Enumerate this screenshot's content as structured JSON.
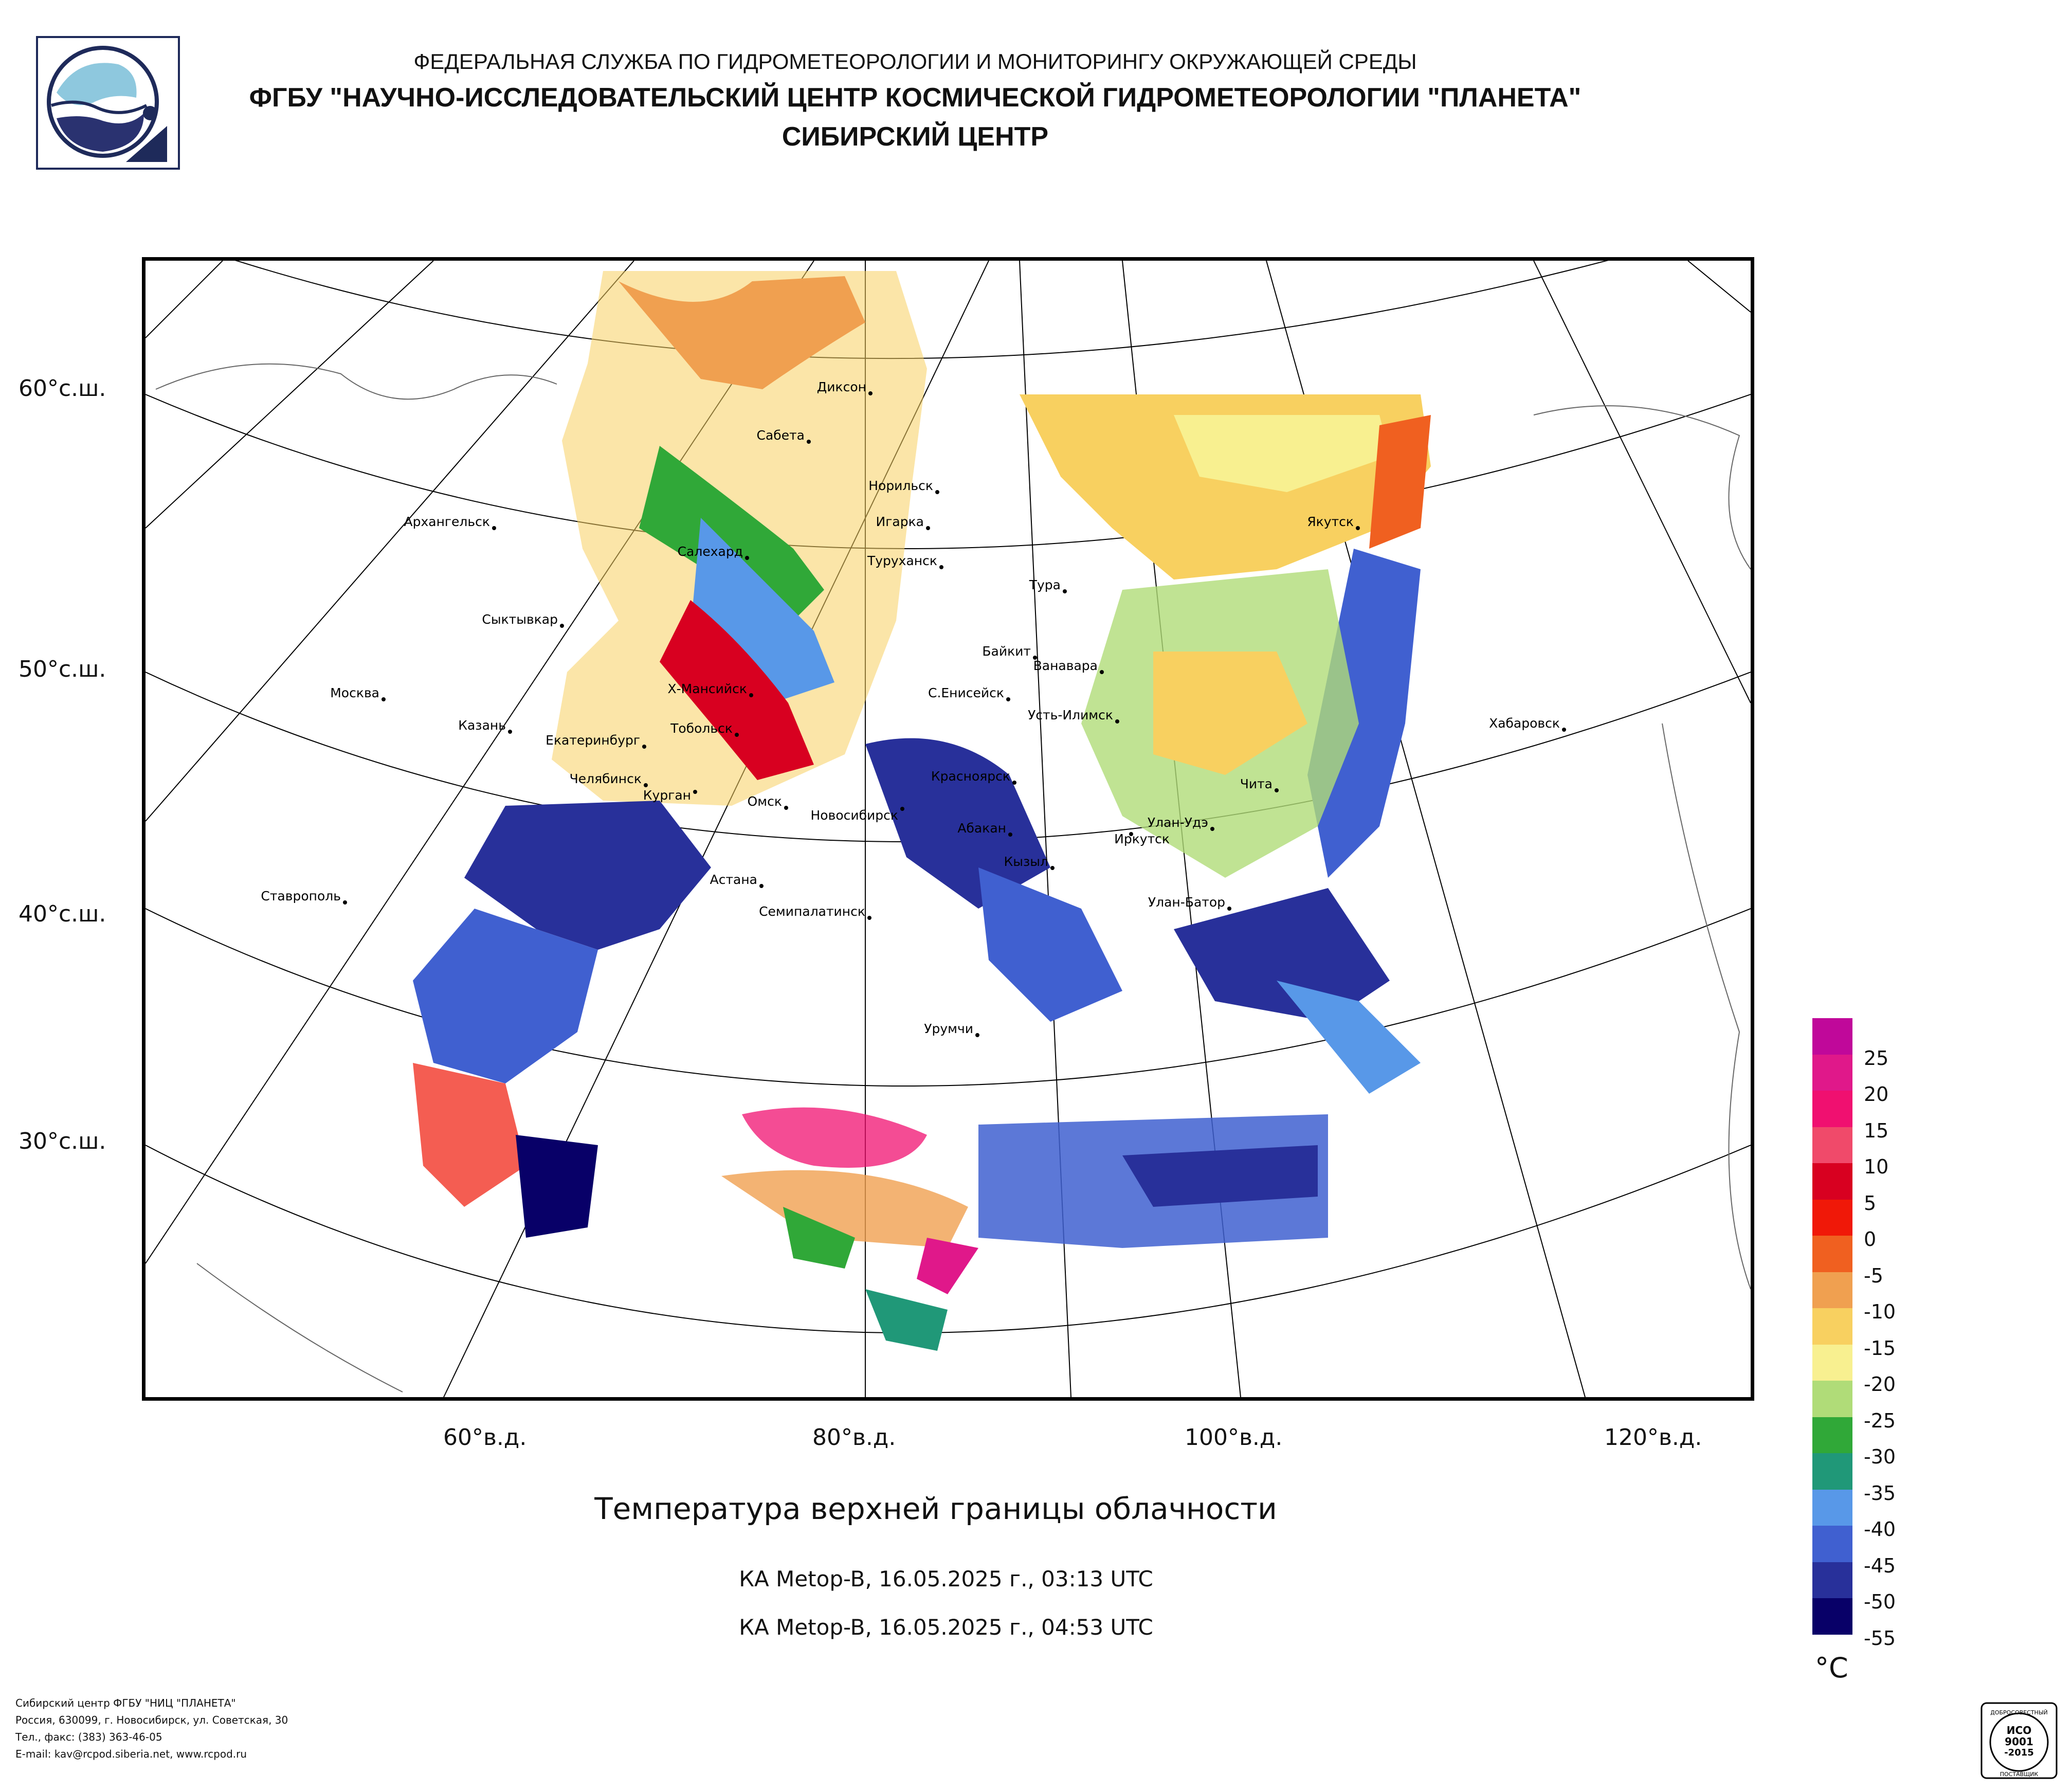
{
  "header": {
    "line1": "ФЕДЕРАЛЬНАЯ СЛУЖБА ПО ГИДРОМЕТЕОРОЛОГИИ И МОНИТОРИНГУ ОКРУЖАЮЩЕЙ СРЕДЫ",
    "line2": "ФГБУ \"НАУЧНО-ИССЛЕДОВАТЕЛЬСКИЙ ЦЕНТР КОСМИЧЕСКОЙ ГИДРОМЕТЕОРОЛОГИИ \"ПЛАНЕТА\"",
    "line3": "СИБИРСКИЙ ЦЕНТР"
  },
  "map": {
    "lat_labels": [
      "60°с.ш.",
      "50°с.ш.",
      "40°с.ш.",
      "30°с.ш."
    ],
    "lon_labels": [
      "60°в.д.",
      "80°в.д.",
      "100°в.д.",
      "120°в.д."
    ],
    "cities": [
      "Диксон",
      "Сабета",
      "Норильск",
      "Архангельск",
      "Игарка",
      "Салехард",
      "Туруханск",
      "Якутск",
      "Тура",
      "Сыктывкар",
      "Байкит",
      "Ванавара",
      "Х-Мансийск",
      "С.Енисейск",
      "Москва",
      "Усть-Илимск",
      "Хабаровск",
      "Казань",
      "Тобольск",
      "Екатеринбург",
      "Челябинск",
      "Красноярск",
      "Чита",
      "Курган",
      "Омск",
      "Новосибирск",
      "Абакан",
      "Улан-Удэ",
      "Иркутск",
      "Кызыл",
      "Астана",
      "Ставрополь",
      "Семипалатинск",
      "Улан-Батор",
      "Урумчи"
    ]
  },
  "title": "Температура верхней границы облачности",
  "subtitles": [
    "КА Metop-B, 16.05.2025 г., 03:13 UTC",
    "КА Metop-B, 16.05.2025 г., 04:53 UTC"
  ],
  "legend": {
    "unit": "°C",
    "labels": [
      "25",
      "20",
      "15",
      "10",
      "5",
      "0",
      "-5",
      "-10",
      "-15",
      "-20",
      "-25",
      "-30",
      "-35",
      "-40",
      "-45",
      "-50",
      "-55"
    ],
    "colors": [
      "#c0089a",
      "#e0188a",
      "#f01070",
      "#f04a6a",
      "#d80020",
      "#f01808",
      "#f06020",
      "#f0a050",
      "#f8d060",
      "#f8f090",
      "#b0dc78",
      "#30a838",
      "#209878",
      "#5898e8",
      "#4060d0",
      "#28309a",
      "#080068"
    ]
  },
  "footer": {
    "lines": [
      "Сибирский центр ФГБУ \"НИЦ \"ПЛАНЕТА\"",
      "Россия, 630099, г. Новосибирск, ул. Советская, 30",
      "Тел., факс: (383) 363-46-05",
      "E-mail: kav@rcpod.siberia.net, www.rcpod.ru"
    ]
  },
  "cert": {
    "top": "ДОБРОСОВЕСТНЫЙ",
    "iso": "ИСО",
    "num": "9001",
    "year": "-2015",
    "bottom": "ПОСТАВЩИК"
  }
}
